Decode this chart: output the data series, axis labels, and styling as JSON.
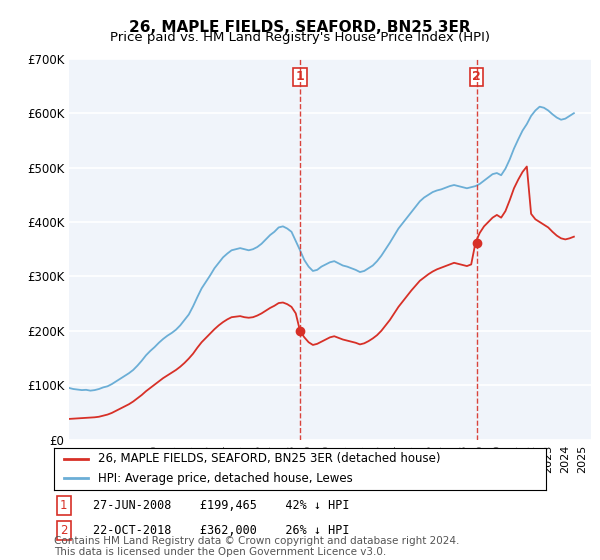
{
  "title": "26, MAPLE FIELDS, SEAFORD, BN25 3ER",
  "subtitle": "Price paid vs. HM Land Registry's House Price Index (HPI)",
  "ylabel_ticks": [
    "£0",
    "£100K",
    "£200K",
    "£300K",
    "£400K",
    "£500K",
    "£600K",
    "£700K"
  ],
  "ytick_values": [
    0,
    100000,
    200000,
    300000,
    400000,
    500000,
    600000,
    700000
  ],
  "ylim": [
    0,
    700000
  ],
  "xlim_start": 1995.0,
  "xlim_end": 2025.5,
  "sale1_date": 2008.49,
  "sale1_price": 199465,
  "sale1_label": "1",
  "sale1_text": "27-JUN-2008    £199,465    42% ↓ HPI",
  "sale2_date": 2018.81,
  "sale2_price": 362000,
  "sale2_label": "2",
  "sale2_text": "22-OCT-2018    £362,000    26% ↓ HPI",
  "legend_line1": "26, MAPLE FIELDS, SEAFORD, BN25 3ER (detached house)",
  "legend_line2": "HPI: Average price, detached house, Lewes",
  "footnote": "Contains HM Land Registry data © Crown copyright and database right 2024.\nThis data is licensed under the Open Government Licence v3.0.",
  "hpi_color": "#6baed6",
  "price_color": "#d73027",
  "vline_color": "#d73027",
  "background_color": "#f0f4fa",
  "grid_color": "#ffffff",
  "title_fontsize": 11,
  "subtitle_fontsize": 9.5,
  "tick_fontsize": 8.5,
  "legend_fontsize": 8.5,
  "footnote_fontsize": 7.5,
  "hpi_data_x": [
    1995.0,
    1995.25,
    1995.5,
    1995.75,
    1996.0,
    1996.25,
    1996.5,
    1996.75,
    1997.0,
    1997.25,
    1997.5,
    1997.75,
    1998.0,
    1998.25,
    1998.5,
    1998.75,
    1999.0,
    1999.25,
    1999.5,
    1999.75,
    2000.0,
    2000.25,
    2000.5,
    2000.75,
    2001.0,
    2001.25,
    2001.5,
    2001.75,
    2002.0,
    2002.25,
    2002.5,
    2002.75,
    2003.0,
    2003.25,
    2003.5,
    2003.75,
    2004.0,
    2004.25,
    2004.5,
    2004.75,
    2005.0,
    2005.25,
    2005.5,
    2005.75,
    2006.0,
    2006.25,
    2006.5,
    2006.75,
    2007.0,
    2007.25,
    2007.5,
    2007.75,
    2008.0,
    2008.25,
    2008.5,
    2008.75,
    2009.0,
    2009.25,
    2009.5,
    2009.75,
    2010.0,
    2010.25,
    2010.5,
    2010.75,
    2011.0,
    2011.25,
    2011.5,
    2011.75,
    2012.0,
    2012.25,
    2012.5,
    2012.75,
    2013.0,
    2013.25,
    2013.5,
    2013.75,
    2014.0,
    2014.25,
    2014.5,
    2014.75,
    2015.0,
    2015.25,
    2015.5,
    2015.75,
    2016.0,
    2016.25,
    2016.5,
    2016.75,
    2017.0,
    2017.25,
    2017.5,
    2017.75,
    2018.0,
    2018.25,
    2018.5,
    2018.75,
    2019.0,
    2019.25,
    2019.5,
    2019.75,
    2020.0,
    2020.25,
    2020.5,
    2020.75,
    2021.0,
    2021.25,
    2021.5,
    2021.75,
    2022.0,
    2022.25,
    2022.5,
    2022.75,
    2023.0,
    2023.25,
    2023.5,
    2023.75,
    2024.0,
    2024.25,
    2024.5
  ],
  "hpi_data_y": [
    95000,
    93000,
    92000,
    91000,
    91500,
    90000,
    91000,
    93000,
    96000,
    98000,
    102000,
    107000,
    112000,
    117000,
    122000,
    128000,
    136000,
    145000,
    155000,
    163000,
    170000,
    178000,
    185000,
    191000,
    196000,
    202000,
    210000,
    220000,
    230000,
    245000,
    262000,
    278000,
    290000,
    302000,
    315000,
    325000,
    335000,
    342000,
    348000,
    350000,
    352000,
    350000,
    348000,
    350000,
    354000,
    360000,
    368000,
    376000,
    382000,
    390000,
    392000,
    388000,
    382000,
    365000,
    348000,
    330000,
    318000,
    310000,
    312000,
    318000,
    322000,
    326000,
    328000,
    324000,
    320000,
    318000,
    315000,
    312000,
    308000,
    310000,
    315000,
    320000,
    328000,
    338000,
    350000,
    362000,
    375000,
    388000,
    398000,
    408000,
    418000,
    428000,
    438000,
    445000,
    450000,
    455000,
    458000,
    460000,
    463000,
    466000,
    468000,
    466000,
    464000,
    462000,
    464000,
    466000,
    470000,
    476000,
    482000,
    488000,
    490000,
    486000,
    498000,
    515000,
    535000,
    552000,
    568000,
    580000,
    595000,
    605000,
    612000,
    610000,
    605000,
    598000,
    592000,
    588000,
    590000,
    595000,
    600000
  ],
  "price_data_x": [
    1995.0,
    1995.25,
    1995.5,
    1995.75,
    1996.0,
    1996.25,
    1996.5,
    1996.75,
    1997.0,
    1997.25,
    1997.5,
    1997.75,
    1998.0,
    1998.25,
    1998.5,
    1998.75,
    1999.0,
    1999.25,
    1999.5,
    1999.75,
    2000.0,
    2000.25,
    2000.5,
    2000.75,
    2001.0,
    2001.25,
    2001.5,
    2001.75,
    2002.0,
    2002.25,
    2002.5,
    2002.75,
    2003.0,
    2003.25,
    2003.5,
    2003.75,
    2004.0,
    2004.25,
    2004.5,
    2004.75,
    2005.0,
    2005.25,
    2005.5,
    2005.75,
    2006.0,
    2006.25,
    2006.5,
    2006.75,
    2007.0,
    2007.25,
    2007.5,
    2007.75,
    2008.0,
    2008.25,
    2008.5,
    2008.75,
    2009.0,
    2009.25,
    2009.5,
    2009.75,
    2010.0,
    2010.25,
    2010.5,
    2010.75,
    2011.0,
    2011.25,
    2011.5,
    2011.75,
    2012.0,
    2012.25,
    2012.5,
    2012.75,
    2013.0,
    2013.25,
    2013.5,
    2013.75,
    2014.0,
    2014.25,
    2014.5,
    2014.75,
    2015.0,
    2015.25,
    2015.5,
    2015.75,
    2016.0,
    2016.25,
    2016.5,
    2016.75,
    2017.0,
    2017.25,
    2017.5,
    2017.75,
    2018.0,
    2018.25,
    2018.5,
    2018.75,
    2019.0,
    2019.25,
    2019.5,
    2019.75,
    2020.0,
    2020.25,
    2020.5,
    2020.75,
    2021.0,
    2021.25,
    2021.5,
    2021.75,
    2022.0,
    2022.25,
    2022.5,
    2022.75,
    2023.0,
    2023.25,
    2023.5,
    2023.75,
    2024.0,
    2024.25,
    2024.5
  ],
  "price_data_y": [
    38000,
    38500,
    39000,
    39500,
    40000,
    40500,
    41000,
    42000,
    44000,
    46000,
    49000,
    53000,
    57000,
    61000,
    65000,
    70000,
    76000,
    82000,
    89000,
    95000,
    101000,
    107000,
    113000,
    118000,
    123000,
    128000,
    134000,
    141000,
    149000,
    158000,
    169000,
    179000,
    187000,
    195000,
    203000,
    210000,
    216000,
    221000,
    225000,
    226000,
    227000,
    225000,
    224000,
    225000,
    228000,
    232000,
    237000,
    242000,
    246000,
    251000,
    252000,
    249000,
    244000,
    232000,
    199465,
    188000,
    179000,
    174000,
    176000,
    180000,
    184000,
    188000,
    190000,
    187000,
    184000,
    182000,
    180000,
    178000,
    175000,
    177000,
    181000,
    186000,
    192000,
    200000,
    210000,
    220000,
    232000,
    244000,
    254000,
    264000,
    274000,
    283000,
    292000,
    298000,
    304000,
    309000,
    313000,
    316000,
    319000,
    322000,
    325000,
    323000,
    321000,
    319000,
    322000,
    362000,
    380000,
    392000,
    400000,
    408000,
    413000,
    408000,
    420000,
    440000,
    462000,
    478000,
    492000,
    502000,
    415000,
    405000,
    400000,
    395000,
    390000,
    382000,
    375000,
    370000,
    368000,
    370000,
    373000
  ]
}
